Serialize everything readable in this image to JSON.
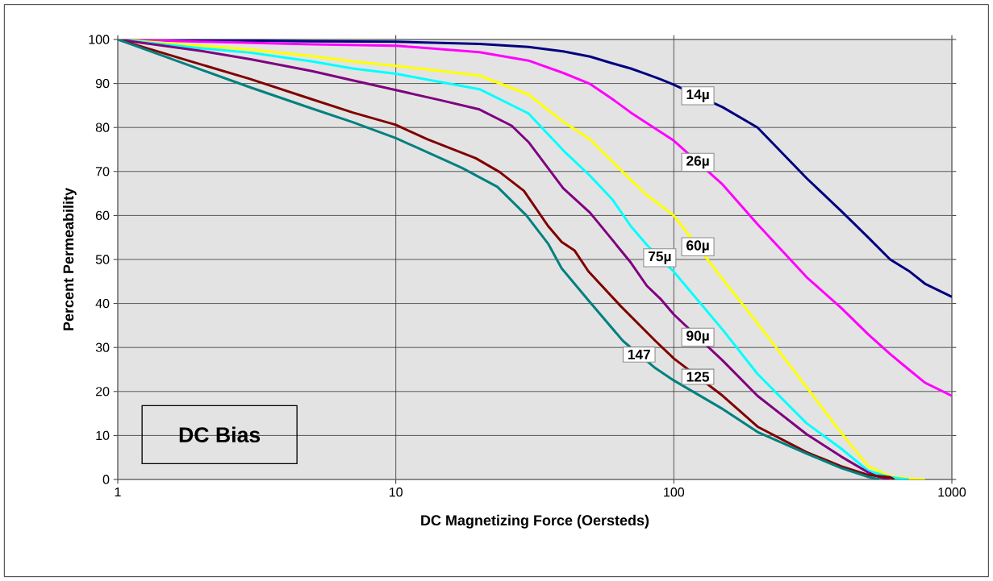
{
  "chart_data": {
    "type": "line",
    "xlabel": "DC Magnetizing Force (Oersteds)",
    "ylabel": "Percent Permeability",
    "log": "x",
    "grid": true,
    "marker": "none",
    "line_style": "solid",
    "xlim": [
      1,
      1000
    ],
    "xticks": [
      1,
      10,
      100,
      1000
    ],
    "ylim": [
      0,
      100
    ],
    "yticks": [
      0,
      10,
      20,
      30,
      40,
      50,
      60,
      70,
      80,
      90,
      100
    ],
    "series": [
      {
        "name": "14µ",
        "color": "#000080",
        "x": [
          1,
          5,
          10,
          20,
          30,
          40,
          50,
          60,
          70,
          80,
          90,
          100,
          150,
          200,
          300,
          400,
          500,
          600,
          700,
          800,
          1000
        ],
        "values": [
          100,
          99.6,
          99.5,
          99,
          98.3,
          97.3,
          96.1,
          94.6,
          93.4,
          92.1,
          90.9,
          89.7,
          84.6,
          80,
          68.5,
          61,
          55,
          50,
          47.4,
          44.5,
          41.5
        ]
      },
      {
        "name": "26µ",
        "color": "#ff00ff",
        "x": [
          1,
          2,
          5,
          10,
          20,
          30,
          40,
          50,
          60,
          70,
          80,
          100,
          150,
          200,
          300,
          400,
          500,
          600,
          700,
          800,
          1000
        ],
        "values": [
          100,
          99.5,
          98.9,
          98.6,
          97.1,
          95.2,
          92.4,
          89.9,
          86.5,
          83.4,
          81,
          77,
          67,
          58,
          46,
          39,
          33,
          28.5,
          25,
          22,
          19
        ]
      },
      {
        "name": "60µ",
        "color": "#ffff00",
        "x": [
          1,
          2,
          3,
          5,
          7,
          10,
          20,
          30,
          40,
          50,
          60,
          70,
          80,
          100,
          150,
          200,
          300,
          400,
          500,
          600,
          700,
          800
        ],
        "values": [
          100,
          98.6,
          97.7,
          96.2,
          95,
          94,
          91.8,
          87.5,
          81.3,
          77.3,
          72.3,
          68.1,
          64.6,
          60,
          45.5,
          35.5,
          21,
          10.6,
          3,
          0.7,
          0.2,
          0
        ]
      },
      {
        "name": "75µ",
        "color": "#00ffff",
        "x": [
          1,
          2,
          3,
          5,
          7,
          10,
          20,
          30,
          40,
          50,
          60,
          70,
          80,
          100,
          150,
          200,
          300,
          400,
          500,
          600,
          700
        ],
        "values": [
          100,
          98,
          97,
          95,
          93.4,
          92.2,
          88.7,
          83.2,
          74.8,
          69,
          63.7,
          57.6,
          53.3,
          47.2,
          34,
          24,
          12.8,
          7,
          2,
          0.5,
          0
        ]
      },
      {
        "name": "90µ",
        "color": "#800080",
        "x": [
          1,
          2,
          3,
          5,
          7,
          10,
          14.5,
          20,
          26.1,
          30,
          40,
          50,
          60,
          70,
          80,
          90,
          100,
          150,
          200,
          300,
          400,
          500,
          550,
          600
        ],
        "values": [
          100,
          97.4,
          95.5,
          92.8,
          90.7,
          88.5,
          86.2,
          84.1,
          80.4,
          76.7,
          66.2,
          60.6,
          54.5,
          49.3,
          44,
          40.9,
          37.5,
          27,
          19,
          10.3,
          5.2,
          1.6,
          0.5,
          0
        ]
      },
      {
        "name": "125",
        "color": "#800000",
        "x": [
          1,
          2,
          3,
          5,
          7,
          10,
          13,
          19.4,
          23.6,
          28.9,
          35.3,
          39.5,
          44,
          49.3,
          64.4,
          85.8,
          100,
          150,
          200,
          300,
          400,
          500,
          600,
          620
        ],
        "values": [
          100,
          94.3,
          91,
          86.4,
          83.4,
          80.6,
          77.3,
          73,
          69.9,
          65.6,
          57.6,
          54,
          52,
          47.3,
          39.4,
          31.5,
          27.5,
          19,
          12,
          6.2,
          3,
          1,
          0.5,
          0
        ]
      },
      {
        "name": "147",
        "color": "#008080",
        "x": [
          1,
          2,
          3,
          5,
          7,
          10,
          14.5,
          17.3,
          23.2,
          29.5,
          35.3,
          39.5,
          49.3,
          65.6,
          85.8,
          100,
          150,
          200,
          300,
          400,
          500,
          550
        ],
        "values": [
          100,
          93.1,
          89.1,
          84.3,
          81.2,
          77.6,
          73,
          70.8,
          66.5,
          60,
          53.6,
          48,
          40.7,
          31.5,
          25.3,
          22.5,
          16,
          10.8,
          5.9,
          2.6,
          0.6,
          0
        ]
      }
    ],
    "annotations": [
      "DC Bias"
    ]
  }
}
